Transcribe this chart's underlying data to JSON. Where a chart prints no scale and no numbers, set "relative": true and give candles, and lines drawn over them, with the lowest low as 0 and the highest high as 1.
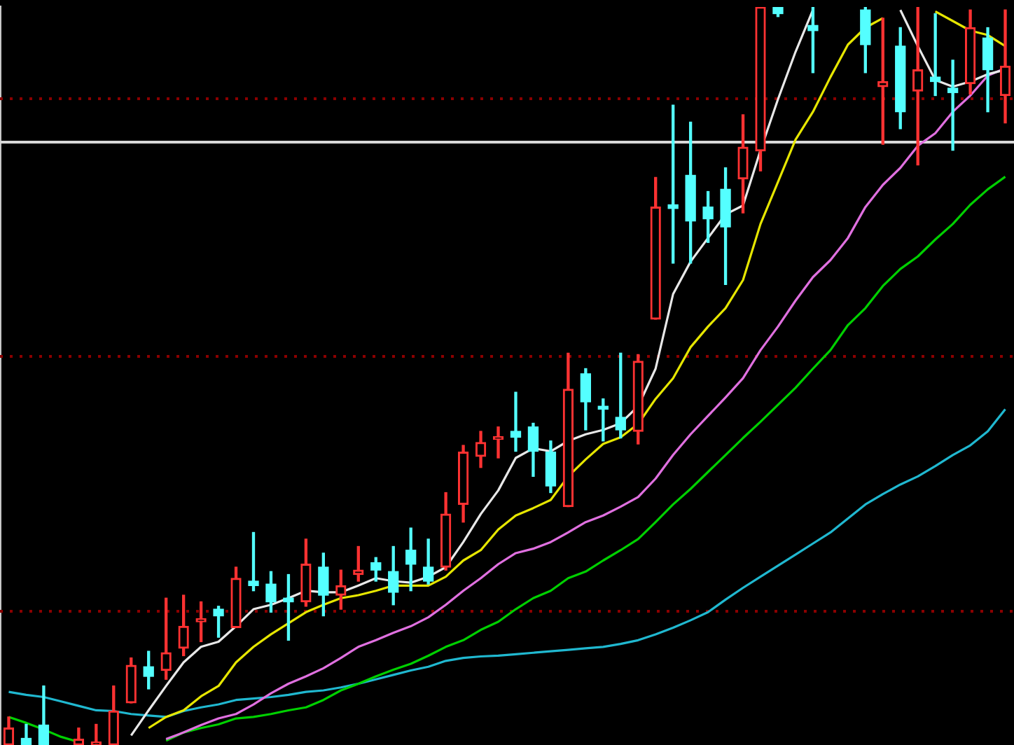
{
  "chart_data": {
    "type": "candlestick",
    "relative": true,
    "marker": "none",
    "categories": [
      null,
      null,
      null,
      null,
      null,
      null,
      null,
      null,
      null,
      null,
      null,
      null,
      null,
      null,
      null,
      null,
      null,
      null,
      null,
      null,
      null,
      null,
      null,
      null,
      null,
      null,
      null,
      null,
      null,
      null,
      null,
      null,
      null,
      null,
      null,
      null,
      null,
      null,
      null,
      null,
      null,
      null,
      null,
      null,
      null,
      null,
      null,
      null,
      null,
      null,
      null,
      null,
      null,
      null,
      null,
      null,
      null,
      null
    ],
    "ohlc": [
      [
        0,
        0.038,
        0,
        0.023
      ],
      [
        0.009,
        0.028,
        0,
        0
      ],
      [
        0.027,
        0.08,
        0,
        0
      ],
      null,
      [
        0,
        0.023,
        0,
        0.008
      ],
      [
        0,
        0.028,
        0,
        0.004
      ],
      [
        0,
        0.08,
        0,
        0.046
      ],
      [
        0.057,
        0.118,
        0.057,
        0.108
      ],
      [
        0.106,
        0.127,
        0.076,
        0.093
      ],
      [
        0.101,
        0.199,
        0.089,
        0.125
      ],
      [
        0.131,
        0.203,
        0.121,
        0.161
      ],
      [
        0.167,
        0.194,
        0.14,
        0.171
      ],
      [
        0.184,
        0.188,
        0.146,
        0.175
      ],
      [
        0.159,
        0.241,
        0.159,
        0.226
      ],
      [
        0.222,
        0.288,
        0.209,
        0.216
      ],
      [
        0.218,
        0.235,
        0.18,
        0.194
      ],
      [
        0.199,
        0.231,
        0.142,
        0.194
      ],
      [
        0.194,
        0.279,
        0.188,
        0.245
      ],
      [
        0.241,
        0.26,
        0.175,
        0.203
      ],
      [
        0.203,
        0.237,
        0.184,
        0.216
      ],
      [
        0.231,
        0.269,
        0.222,
        0.237
      ],
      [
        0.247,
        0.254,
        0.222,
        0.237
      ],
      [
        0.235,
        0.269,
        0.19,
        0.207
      ],
      [
        0.264,
        0.294,
        0.209,
        0.245
      ],
      [
        0.241,
        0.279,
        0.218,
        0.222
      ],
      [
        0.241,
        0.342,
        0.237,
        0.313
      ],
      [
        0.326,
        0.406,
        0.302,
        0.397
      ],
      [
        0.391,
        0.425,
        0.376,
        0.41
      ],
      [
        0.414,
        0.431,
        0.389,
        0.417
      ],
      [
        0.425,
        0.478,
        0.398,
        0.417
      ],
      [
        0.431,
        0.436,
        0.364,
        0.398
      ],
      [
        0.397,
        0.412,
        0.342,
        0.351
      ],
      [
        0.323,
        0.531,
        0.323,
        0.482
      ],
      [
        0.503,
        0.51,
        0.427,
        0.465
      ],
      [
        0.459,
        0.469,
        0.412,
        0.455
      ],
      [
        0.444,
        0.531,
        0.416,
        0.427
      ],
      [
        0.425,
        0.529,
        0.408,
        0.52
      ],
      [
        0.577,
        0.769,
        0.577,
        0.729
      ],
      [
        0.732,
        0.867,
        0.653,
        0.727
      ],
      [
        0.772,
        0.844,
        0.653,
        0.71
      ],
      [
        0.729,
        0.75,
        0.681,
        0.713
      ],
      [
        0.753,
        0.782,
        0.624,
        0.702
      ],
      [
        0.767,
        0.854,
        0.721,
        0.81
      ],
      [
        0.805,
        1,
        0.778,
        1
      ],
      [
        1,
        1,
        0.987,
        0.991
      ],
      null,
      [
        0.975,
        1,
        0.911,
        0.968
      ],
      null,
      null,
      [
        0.996,
        1,
        0.911,
        0.949
      ],
      [
        0.892,
        0.985,
        0.814,
        0.899
      ],
      [
        0.947,
        0.972,
        0.835,
        0.858
      ],
      [
        0.886,
        1,
        0.786,
        0.915
      ],
      [
        0.905,
        0.991,
        0.88,
        0.899
      ],
      [
        0.89,
        0.928,
        0.806,
        0.884
      ],
      [
        0.896,
        0.996,
        0.882,
        0.972
      ],
      [
        0.958,
        0.972,
        0.858,
        0.915
      ],
      [
        0.88,
        0.996,
        0.843,
        0.92
      ]
    ],
    "colors": [
      "#ff3232",
      "#54ffff",
      "#54ffff",
      null,
      "#ff3232",
      "#ff3232",
      "#ff3232",
      "#ff3232",
      "#54ffff",
      "#ff3232",
      "#ff3232",
      "#ff3232",
      "#54ffff",
      "#ff3232",
      "#54ffff",
      "#54ffff",
      "#54ffff",
      "#ff3232",
      "#54ffff",
      "#ff3232",
      "#ff3232",
      "#54ffff",
      "#54ffff",
      "#54ffff",
      "#54ffff",
      "#ff3232",
      "#ff3232",
      "#ff3232",
      "#ff3232",
      "#54ffff",
      "#54ffff",
      "#54ffff",
      "#ff3232",
      "#54ffff",
      "#54ffff",
      "#54ffff",
      "#ff3232",
      "#ff3232",
      "#54ffff",
      "#54ffff",
      "#54ffff",
      "#54ffff",
      "#ff3232",
      "#ff3232",
      "#54ffff",
      null,
      "#54ffff",
      null,
      null,
      "#54ffff",
      "#ff3232",
      "#54ffff",
      "#ff3232",
      "#54ffff",
      "#54ffff",
      "#ff3232",
      "#54ffff",
      "#ff3232"
    ],
    "series": [
      {
        "type": "line",
        "color": "#e8e8e8",
        "values": [
          null,
          null,
          null,
          null,
          null,
          null,
          null,
          0.013,
          0.047,
          0.08,
          0.112,
          0.133,
          0.14,
          0.161,
          0.184,
          0.19,
          0.199,
          0.209,
          0.207,
          0.207,
          0.216,
          0.226,
          0.222,
          0.22,
          0.228,
          0.241,
          0.275,
          0.313,
          0.345,
          0.389,
          0.402,
          0.398,
          0.412,
          0.421,
          0.427,
          0.436,
          0.459,
          0.51,
          0.611,
          0.655,
          0.687,
          0.719,
          0.731,
          0.806,
          0.875,
          0.939,
          0.996,
          null,
          null,
          null,
          null,
          0.996,
          0.947,
          0.901,
          0.892,
          0.899,
          0.909,
          0.915
        ]
      },
      {
        "type": "line",
        "color": "#e6e600",
        "values": [
          null,
          null,
          null,
          null,
          null,
          null,
          null,
          null,
          0.023,
          0.038,
          0.047,
          0.066,
          0.08,
          0.112,
          0.133,
          0.15,
          0.165,
          0.18,
          0.19,
          0.199,
          0.203,
          0.209,
          0.216,
          0.216,
          0.216,
          0.228,
          0.25,
          0.264,
          0.292,
          0.311,
          0.321,
          0.332,
          0.364,
          0.387,
          0.408,
          0.417,
          0.435,
          0.469,
          0.497,
          0.539,
          0.567,
          0.592,
          0.63,
          0.706,
          0.763,
          0.82,
          0.858,
          0.905,
          0.949,
          0.972,
          0.985,
          null,
          null,
          0.994,
          0.981,
          0.968,
          0.962,
          0.947
        ]
      },
      {
        "type": "line",
        "color": "#e070e0",
        "values": [
          null,
          null,
          null,
          null,
          null,
          null,
          null,
          null,
          null,
          0.008,
          0.017,
          0.027,
          0.036,
          0.042,
          0.055,
          0.07,
          0.083,
          0.093,
          0.104,
          0.118,
          0.133,
          0.142,
          0.152,
          0.161,
          0.173,
          0.19,
          0.209,
          0.226,
          0.245,
          0.26,
          0.266,
          0.275,
          0.288,
          0.302,
          0.311,
          0.323,
          0.336,
          0.361,
          0.393,
          0.421,
          0.446,
          0.471,
          0.497,
          0.535,
          0.567,
          0.602,
          0.634,
          0.657,
          0.687,
          0.729,
          0.759,
          0.782,
          0.812,
          0.829,
          0.858,
          0.88,
          0.907,
          0.917
        ]
      },
      {
        "type": "line",
        "color": "#00d000",
        "values": [
          0.038,
          0.03,
          0.021,
          0.011,
          0.004,
          null,
          null,
          null,
          null,
          0.006,
          0.017,
          0.023,
          0.028,
          0.036,
          0.038,
          0.042,
          0.047,
          0.051,
          0.061,
          0.074,
          0.083,
          0.093,
          0.102,
          0.11,
          0.121,
          0.133,
          0.142,
          0.156,
          0.167,
          0.184,
          0.199,
          0.209,
          0.226,
          0.235,
          0.25,
          0.264,
          0.279,
          0.302,
          0.326,
          0.347,
          0.37,
          0.393,
          0.416,
          0.438,
          0.461,
          0.484,
          0.51,
          0.535,
          0.569,
          0.592,
          0.622,
          0.645,
          0.662,
          0.685,
          0.706,
          0.732,
          0.753,
          0.77
        ]
      },
      {
        "type": "line",
        "color": "#20b8d0",
        "values": [
          0.072,
          0.068,
          0.065,
          0.059,
          0.053,
          0.047,
          0.046,
          0.042,
          0.04,
          0.038,
          0.046,
          0.051,
          0.055,
          0.061,
          0.063,
          0.065,
          0.068,
          0.072,
          0.074,
          0.078,
          0.083,
          0.089,
          0.095,
          0.101,
          0.106,
          0.114,
          0.118,
          0.12,
          0.121,
          0.123,
          0.125,
          0.127,
          0.129,
          0.131,
          0.133,
          0.137,
          0.142,
          0.15,
          0.159,
          0.169,
          0.18,
          0.197,
          0.213,
          0.228,
          0.243,
          0.258,
          0.273,
          0.288,
          0.307,
          0.326,
          0.34,
          0.353,
          0.364,
          0.378,
          0.393,
          0.406,
          0.425,
          0.455
        ]
      }
    ],
    "ref_lines": [
      {
        "axis": "y",
        "value": 0.877,
        "color": "#8b0000",
        "line_style": "dotted"
      },
      {
        "axis": "y",
        "value": 0.818,
        "color": "#d8d8d8",
        "line_style": "solid"
      },
      {
        "axis": "y",
        "value": 0.528,
        "color": "#8b0000",
        "line_style": "dotted"
      },
      {
        "axis": "y",
        "value": 0.182,
        "color": "#8b0000",
        "line_style": "dotted"
      }
    ]
  }
}
